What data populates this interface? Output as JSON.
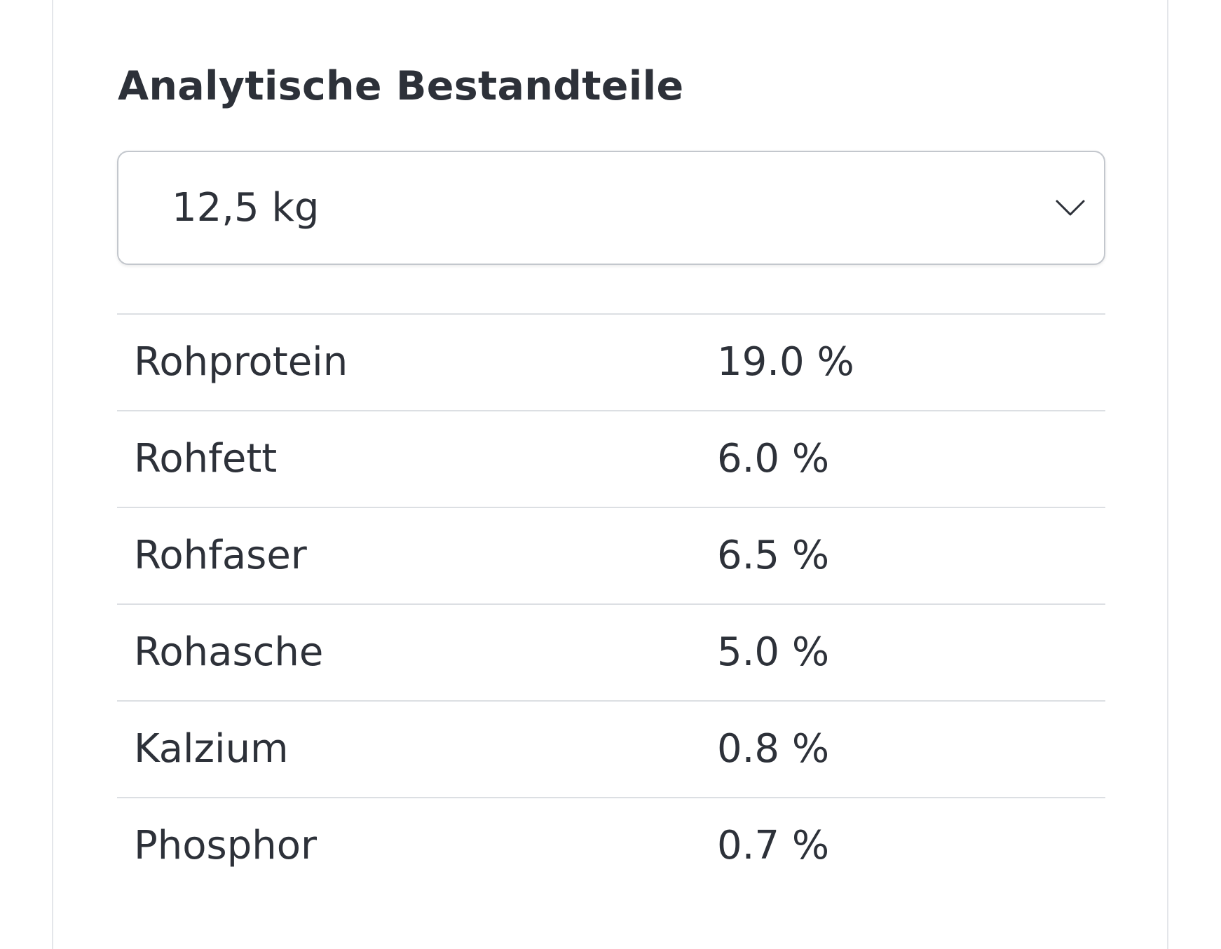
{
  "section": {
    "title": "Analytische Bestandteile"
  },
  "size_select": {
    "selected": "12,5 kg",
    "icon": "chevron-down-icon"
  },
  "analysis_table": {
    "rows": [
      {
        "name": "Rohprotein",
        "value": "19.0 %"
      },
      {
        "name": "Rohfett",
        "value": "6.0 %"
      },
      {
        "name": "Rohfaser",
        "value": "6.5 %"
      },
      {
        "name": "Rohasche",
        "value": "5.0 %"
      },
      {
        "name": "Kalzium",
        "value": "0.8 %"
      },
      {
        "name": "Phosphor",
        "value": "0.7 %"
      }
    ]
  },
  "colors": {
    "text": "#2d3139",
    "divider": "#dcdfe3",
    "select_border": "#c3c7cd"
  }
}
